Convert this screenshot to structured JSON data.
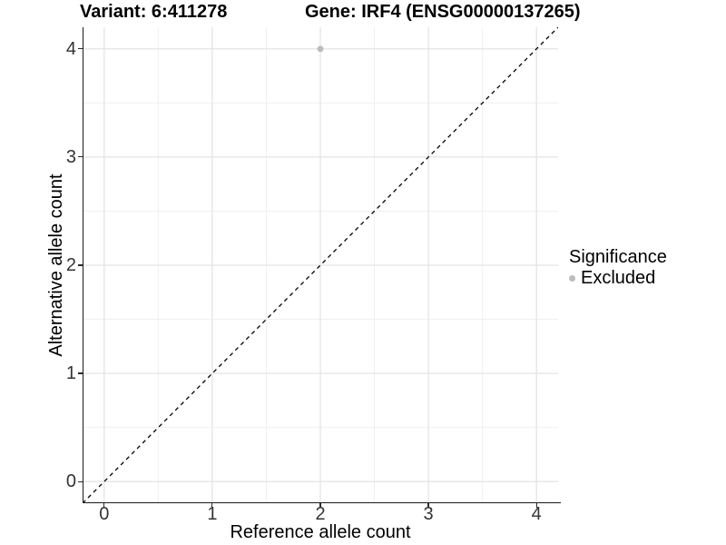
{
  "titles": {
    "variant": "Variant: 6:411278",
    "gene": "Gene: IRF4 (ENSG00000137265)"
  },
  "axes": {
    "x": {
      "label": "Reference allele count",
      "tick_labels": [
        "0",
        "1",
        "2",
        "3",
        "4"
      ]
    },
    "y": {
      "label": "Alternative allele count",
      "tick_labels": [
        "0",
        "1",
        "2",
        "3",
        "4"
      ]
    }
  },
  "legend": {
    "title": "Significance",
    "items": [
      {
        "label": "Excluded",
        "color": "#bcbcbc"
      }
    ]
  },
  "chart_data": {
    "type": "scatter",
    "title": "Variant: 6:411278   Gene: IRF4 (ENSG00000137265)",
    "xlabel": "Reference allele count",
    "ylabel": "Alternative allele count",
    "xlim": [
      -0.2,
      4.2
    ],
    "ylim": [
      -0.2,
      4.2
    ],
    "xticks": [
      0,
      1,
      2,
      3,
      4
    ],
    "yticks": [
      0,
      1,
      2,
      3,
      4
    ],
    "minor_ticks_x": [
      0.5,
      1.5,
      2.5,
      3.5
    ],
    "minor_ticks_y": [
      0.5,
      1.5,
      2.5,
      3.5
    ],
    "grid": "major+minor",
    "legend_position": "right",
    "series": [
      {
        "name": "Excluded",
        "marker": "circle",
        "color": "#bcbcbc",
        "points": [
          [
            2,
            4
          ]
        ]
      }
    ],
    "reference_line": {
      "slope": 1,
      "intercept": 0,
      "style": "dashed",
      "color": "#000000",
      "from": [
        -0.2,
        -0.2
      ],
      "to": [
        4.2,
        4.2
      ]
    }
  },
  "colors": {
    "background": "#ffffff",
    "grid_major": "#e4e4e4",
    "grid_minor": "#f0f0f0",
    "axis_line": "#1a1a1a",
    "tick_text": "#333333",
    "point": "#bcbcbc"
  }
}
